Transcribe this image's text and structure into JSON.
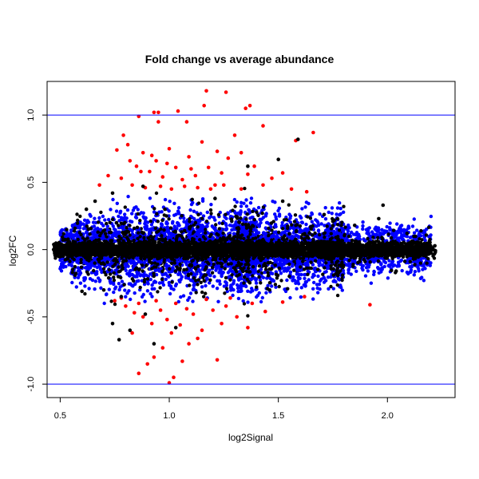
{
  "chart_data": {
    "type": "scatter",
    "title": "Fold change vs average abundance",
    "xlabel": "log2Signal",
    "ylabel": "log2FC",
    "xlim": [
      0.44,
      2.31
    ],
    "ylim": [
      -1.1,
      1.25
    ],
    "xticks": [
      {
        "value": 0.5,
        "label": "0.5"
      },
      {
        "value": 1.0,
        "label": "1.0"
      },
      {
        "value": 1.5,
        "label": "1.5"
      },
      {
        "value": 2.0,
        "label": "2.0"
      }
    ],
    "yticks": [
      {
        "value": -1.0,
        "label": "-1.0"
      },
      {
        "value": -0.5,
        "label": "-0.5"
      },
      {
        "value": 0.0,
        "label": "0.0"
      },
      {
        "value": 0.5,
        "label": "0.5"
      },
      {
        "value": 1.0,
        "label": "1.0"
      }
    ],
    "hlines": [
      1.0,
      -1.0
    ],
    "hline_color": "#0000ff",
    "grid": false,
    "colors": {
      "black": "#000000",
      "blue": "#0000ff",
      "red": "#ff0000"
    },
    "series": [
      {
        "color": "red",
        "points": [
          [
            0.86,
            0.99
          ],
          [
            0.93,
            1.02
          ],
          [
            0.95,
            1.02
          ],
          [
            1.04,
            1.03
          ],
          [
            1.17,
            1.18
          ],
          [
            1.26,
            1.17
          ],
          [
            1.37,
            1.07
          ],
          [
            1.16,
            1.07
          ],
          [
            1.35,
            1.05
          ],
          [
            0.95,
            0.95
          ],
          [
            1.08,
            0.95
          ],
          [
            1.43,
            0.92
          ],
          [
            1.66,
            0.87
          ],
          [
            1.58,
            0.81
          ],
          [
            0.76,
            0.74
          ],
          [
            0.79,
            0.85
          ],
          [
            0.82,
            0.66
          ],
          [
            0.85,
            0.62
          ],
          [
            0.88,
            0.72
          ],
          [
            0.91,
            0.58
          ],
          [
            0.94,
            0.66
          ],
          [
            0.97,
            0.54
          ],
          [
            1.0,
            0.75
          ],
          [
            1.03,
            0.61
          ],
          [
            1.06,
            0.52
          ],
          [
            1.09,
            0.69
          ],
          [
            1.12,
            0.55
          ],
          [
            1.15,
            0.8
          ],
          [
            1.18,
            0.61
          ],
          [
            1.21,
            0.48
          ],
          [
            1.24,
            0.57
          ],
          [
            1.27,
            0.68
          ],
          [
            1.3,
            0.85
          ],
          [
            1.33,
            0.72
          ],
          [
            1.36,
            0.56
          ],
          [
            1.39,
            0.62
          ],
          [
            1.47,
            0.53
          ],
          [
            1.52,
            0.57
          ],
          [
            0.72,
            0.55
          ],
          [
            0.78,
            0.53
          ],
          [
            0.83,
            0.48
          ],
          [
            0.89,
            0.46
          ],
          [
            0.96,
            0.47
          ],
          [
            1.01,
            0.45
          ],
          [
            1.07,
            0.47
          ],
          [
            1.13,
            0.46
          ],
          [
            1.19,
            0.45
          ],
          [
            1.25,
            0.48
          ],
          [
            1.33,
            0.45
          ],
          [
            1.43,
            0.48
          ],
          [
            1.56,
            0.45
          ],
          [
            1.63,
            0.43
          ],
          [
            0.68,
            0.48
          ],
          [
            0.81,
            0.78
          ],
          [
            0.87,
            0.58
          ],
          [
            0.92,
            0.7
          ],
          [
            0.99,
            0.64
          ],
          [
            1.1,
            0.6
          ],
          [
            1.22,
            0.73
          ],
          [
            0.86,
            -0.92
          ],
          [
            0.9,
            -0.85
          ],
          [
            0.93,
            -0.8
          ],
          [
            0.97,
            -0.73
          ],
          [
            1.0,
            -0.99
          ],
          [
            1.02,
            -0.95
          ],
          [
            1.06,
            -0.83
          ],
          [
            1.09,
            -0.7
          ],
          [
            1.13,
            -0.66
          ],
          [
            1.22,
            -0.82
          ],
          [
            0.75,
            -0.38
          ],
          [
            0.8,
            -0.42
          ],
          [
            0.84,
            -0.47
          ],
          [
            0.88,
            -0.5
          ],
          [
            0.92,
            -0.55
          ],
          [
            0.96,
            -0.45
          ],
          [
            1.01,
            -0.62
          ],
          [
            1.05,
            -0.56
          ],
          [
            1.11,
            -0.48
          ],
          [
            1.15,
            -0.6
          ],
          [
            1.2,
            -0.45
          ],
          [
            1.26,
            -0.42
          ],
          [
            1.31,
            -0.5
          ],
          [
            1.38,
            -0.4
          ],
          [
            1.44,
            -0.46
          ],
          [
            1.52,
            -0.39
          ],
          [
            1.62,
            -0.35
          ],
          [
            1.92,
            -0.41
          ],
          [
            0.78,
            -0.36
          ],
          [
            0.86,
            -0.4
          ],
          [
            0.94,
            -0.38
          ],
          [
            1.03,
            -0.4
          ],
          [
            1.17,
            -0.37
          ],
          [
            1.28,
            -0.36
          ],
          [
            1.36,
            -0.58
          ],
          [
            0.83,
            -0.62
          ],
          [
            0.99,
            -0.52
          ],
          [
            1.08,
            -0.44
          ],
          [
            1.24,
            -0.55
          ]
        ]
      },
      {
        "color": "black",
        "points": [
          [
            1.59,
            0.82
          ],
          [
            1.36,
            0.62
          ],
          [
            1.5,
            0.67
          ],
          [
            0.88,
            0.47
          ],
          [
            0.77,
            -0.67
          ],
          [
            0.82,
            -0.6
          ],
          [
            0.89,
            -0.48
          ],
          [
            0.74,
            -0.55
          ],
          [
            0.93,
            -0.7
          ],
          [
            1.03,
            -0.58
          ],
          [
            2.17,
            -0.02
          ],
          [
            2.22,
            -0.01
          ],
          [
            2.12,
            0.0
          ],
          [
            0.47,
            0.0
          ],
          [
            0.5,
            0.01
          ],
          [
            0.54,
            -0.05
          ],
          [
            0.56,
            0.06
          ],
          [
            0.58,
            -0.02
          ],
          [
            0.6,
            0.03
          ],
          [
            0.63,
            -0.06
          ],
          [
            0.66,
            0.04
          ],
          [
            0.7,
            0.02
          ],
          [
            0.73,
            -0.04
          ],
          [
            0.77,
            0.05
          ],
          [
            0.8,
            -0.03
          ],
          [
            0.84,
            0.01
          ],
          [
            0.87,
            -0.05
          ],
          [
            0.91,
            0.03
          ],
          [
            0.95,
            -0.01
          ],
          [
            0.99,
            0.04
          ],
          [
            1.03,
            -0.03
          ],
          [
            1.07,
            0.02
          ],
          [
            1.11,
            -0.04
          ],
          [
            1.16,
            0.03
          ],
          [
            1.2,
            -0.02
          ],
          [
            1.25,
            0.04
          ],
          [
            1.3,
            -0.03
          ],
          [
            1.35,
            0.01
          ],
          [
            1.4,
            -0.04
          ],
          [
            1.46,
            0.03
          ],
          [
            1.52,
            -0.01
          ],
          [
            1.58,
            0.02
          ],
          [
            1.64,
            -0.03
          ],
          [
            1.7,
            0.01
          ],
          [
            1.76,
            -0.02
          ],
          [
            1.82,
            0.02
          ],
          [
            1.88,
            -0.01
          ],
          [
            1.94,
            0.03
          ],
          [
            2.0,
            -0.02
          ],
          [
            2.06,
            0.01
          ],
          [
            0.62,
            0.3
          ],
          [
            0.66,
            0.36
          ],
          [
            0.7,
            -0.3
          ],
          [
            0.74,
            0.42
          ],
          [
            0.78,
            -0.35
          ],
          [
            1.85,
            0.18
          ],
          [
            1.96,
            0.23
          ],
          [
            2.04,
            -0.16
          ],
          [
            2.09,
            0.12
          ],
          [
            0.98,
            0.3
          ],
          [
            1.46,
            -0.3
          ],
          [
            1.71,
            0.26
          ],
          [
            1.21,
            0.38
          ],
          [
            0.6,
            -0.31
          ],
          [
            1.52,
            0.36
          ],
          [
            1.98,
            0.33
          ]
        ]
      }
    ]
  }
}
